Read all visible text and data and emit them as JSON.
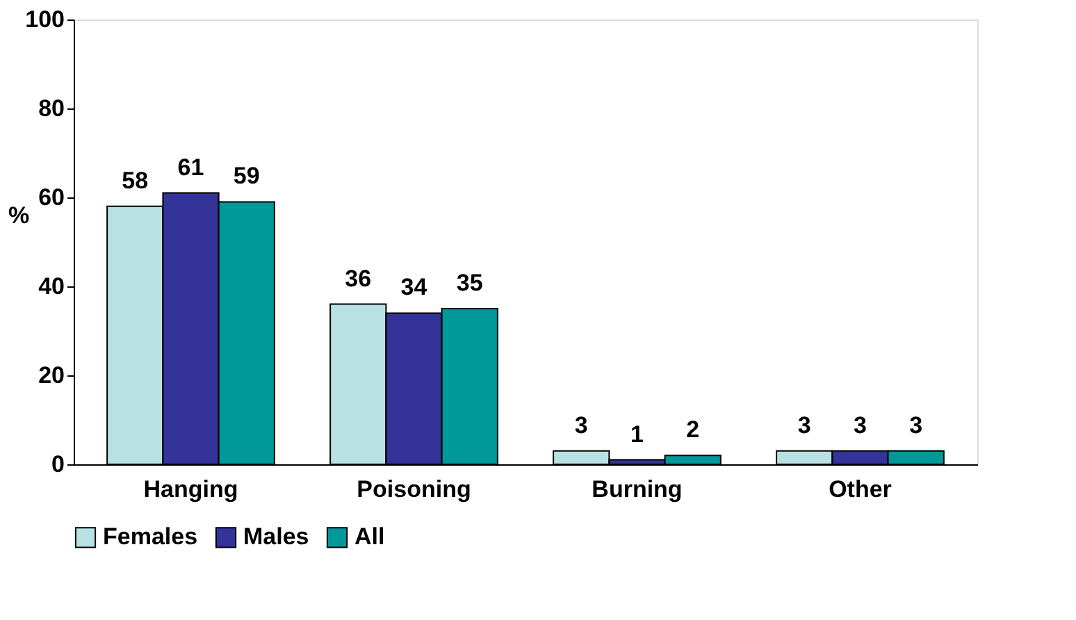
{
  "chart_data": {
    "type": "bar",
    "ylabel": "%",
    "categories": [
      "Hanging",
      "Poisoning",
      "Burning",
      "Other"
    ],
    "series": [
      {
        "name": "Females",
        "color": "#b9e0e3",
        "values": [
          58,
          36,
          3,
          3
        ]
      },
      {
        "name": "Males",
        "color": "#333399",
        "values": [
          61,
          34,
          1,
          3
        ]
      },
      {
        "name": "All",
        "color": "#009999",
        "values": [
          59,
          35,
          2,
          3
        ]
      }
    ],
    "ylim": [
      0,
      100
    ],
    "yticks": [
      0,
      20,
      40,
      60,
      80,
      100
    ],
    "grid": false,
    "legend": "bottom",
    "data_labels": true
  }
}
